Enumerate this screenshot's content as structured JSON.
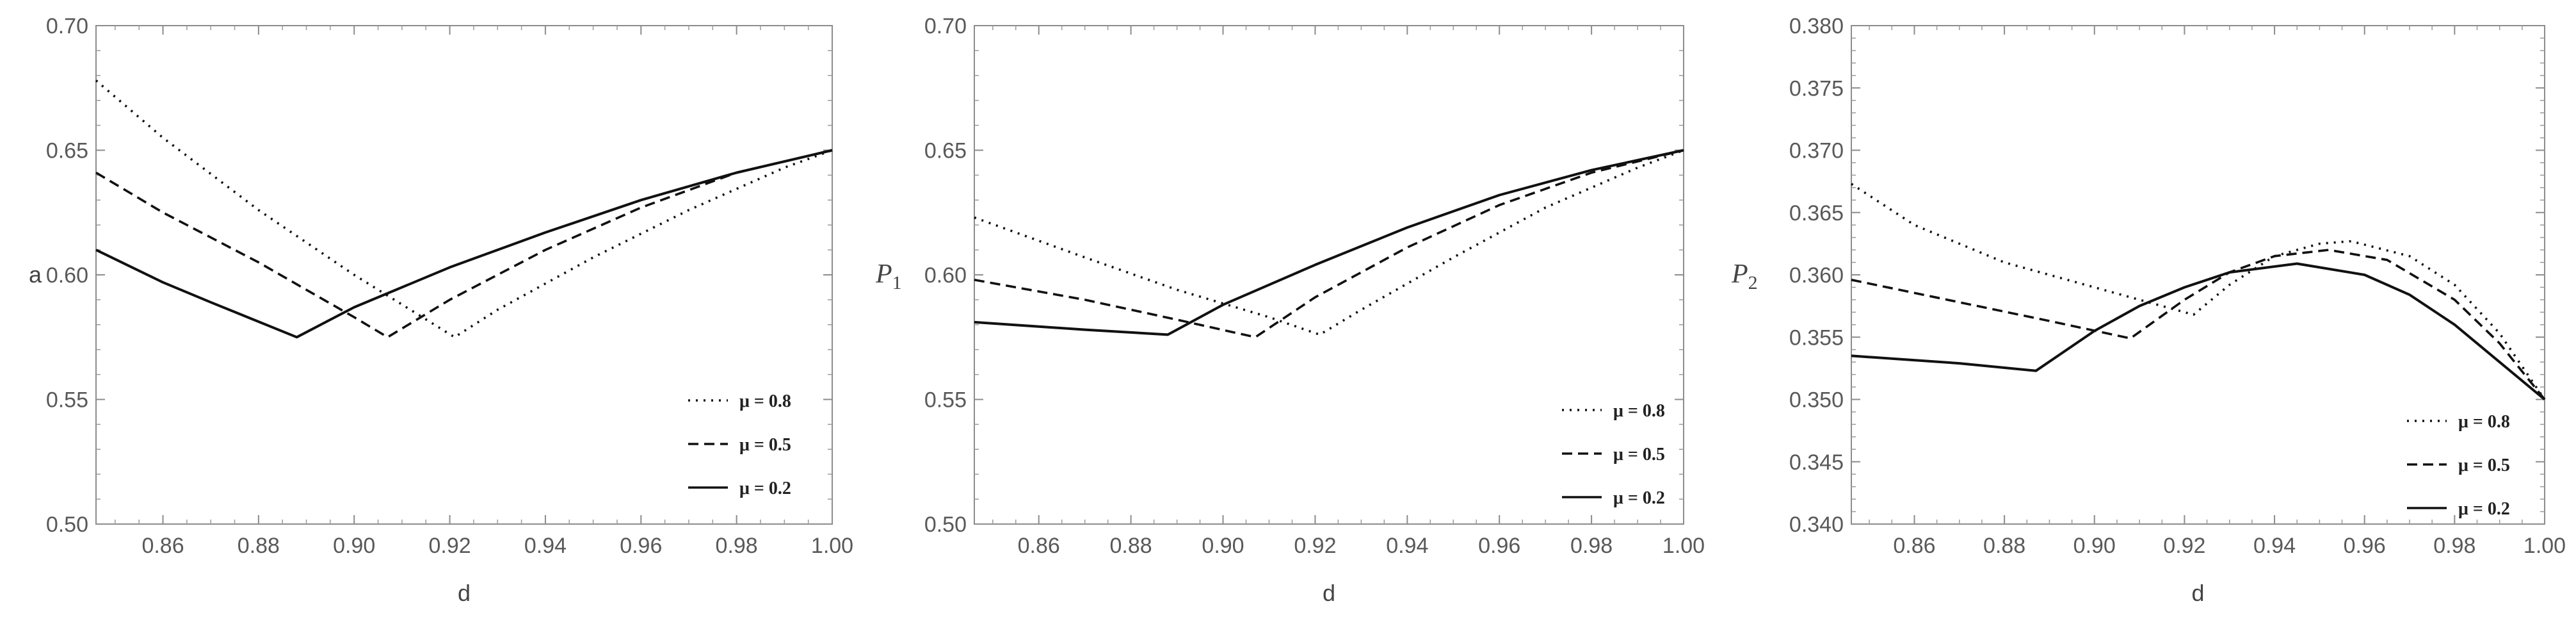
{
  "chart_data": [
    {
      "type": "line",
      "xlabel": "d",
      "ylabel": "a",
      "ylabel_sub": "",
      "xlim": [
        0.846,
        1.0
      ],
      "ylim": [
        0.5,
        0.7
      ],
      "xticks": [
        0.86,
        0.88,
        0.9,
        0.92,
        0.94,
        0.96,
        0.98,
        1.0
      ],
      "xtick_labels": [
        "0.86",
        "0.88",
        "0.90",
        "0.92",
        "0.94",
        "0.96",
        "0.98",
        "1.00"
      ],
      "yticks": [
        0.5,
        0.55,
        0.6,
        0.65,
        0.7
      ],
      "ytick_labels": [
        "0.50",
        "0.55",
        "0.60",
        "0.65",
        "0.70"
      ],
      "grid": false,
      "legend_position": "bottom-right",
      "series": [
        {
          "name": "μ = 0.8",
          "style": "dotted",
          "x": [
            0.846,
            0.86,
            0.88,
            0.9,
            0.921,
            0.93,
            0.95,
            0.97,
            0.99,
            1.0
          ],
          "y": [
            0.678,
            0.655,
            0.626,
            0.6,
            0.575,
            0.586,
            0.607,
            0.626,
            0.643,
            0.65
          ]
        },
        {
          "name": "μ = 0.5",
          "style": "dashed",
          "x": [
            0.846,
            0.86,
            0.88,
            0.9,
            0.907,
            0.92,
            0.94,
            0.96,
            0.98,
            1.0
          ],
          "y": [
            0.641,
            0.625,
            0.605,
            0.583,
            0.575,
            0.59,
            0.61,
            0.627,
            0.641,
            0.65
          ]
        },
        {
          "name": "μ = 0.2",
          "style": "solid",
          "x": [
            0.846,
            0.86,
            0.87,
            0.888,
            0.9,
            0.92,
            0.94,
            0.96,
            0.98,
            1.0
          ],
          "y": [
            0.61,
            0.597,
            0.589,
            0.575,
            0.587,
            0.603,
            0.617,
            0.63,
            0.641,
            0.65
          ]
        }
      ]
    },
    {
      "type": "line",
      "xlabel": "d",
      "ylabel": "P",
      "ylabel_sub": "1",
      "xlim": [
        0.846,
        1.0
      ],
      "ylim": [
        0.5,
        0.7
      ],
      "xticks": [
        0.86,
        0.88,
        0.9,
        0.92,
        0.94,
        0.96,
        0.98,
        1.0
      ],
      "xtick_labels": [
        "0.86",
        "0.88",
        "0.90",
        "0.92",
        "0.94",
        "0.96",
        "0.98",
        "1.00"
      ],
      "yticks": [
        0.5,
        0.55,
        0.6,
        0.65,
        0.7
      ],
      "ytick_labels": [
        "0.50",
        "0.55",
        "0.60",
        "0.65",
        "0.70"
      ],
      "grid": false,
      "legend_position": "bottom-right",
      "series": [
        {
          "name": "μ = 0.8",
          "style": "dotted",
          "x": [
            0.846,
            0.87,
            0.89,
            0.91,
            0.921,
            0.93,
            0.95,
            0.97,
            0.99,
            1.0
          ],
          "y": [
            0.623,
            0.607,
            0.594,
            0.583,
            0.576,
            0.586,
            0.607,
            0.627,
            0.643,
            0.65
          ]
        },
        {
          "name": "μ = 0.5",
          "style": "dashed",
          "x": [
            0.846,
            0.87,
            0.89,
            0.907,
            0.92,
            0.94,
            0.96,
            0.98,
            1.0
          ],
          "y": [
            0.598,
            0.59,
            0.582,
            0.575,
            0.591,
            0.611,
            0.628,
            0.641,
            0.65
          ]
        },
        {
          "name": "μ = 0.2",
          "style": "solid",
          "x": [
            0.846,
            0.87,
            0.888,
            0.9,
            0.92,
            0.94,
            0.96,
            0.98,
            1.0
          ],
          "y": [
            0.581,
            0.578,
            0.576,
            0.588,
            0.604,
            0.619,
            0.632,
            0.642,
            0.65
          ]
        }
      ]
    },
    {
      "type": "line",
      "xlabel": "d",
      "ylabel": "P",
      "ylabel_sub": "2",
      "xlim": [
        0.846,
        1.0
      ],
      "ylim": [
        0.34,
        0.38
      ],
      "xticks": [
        0.86,
        0.88,
        0.9,
        0.92,
        0.94,
        0.96,
        0.98,
        1.0
      ],
      "xtick_labels": [
        "0.86",
        "0.88",
        "0.90",
        "0.92",
        "0.94",
        "0.96",
        "0.98",
        "1.00"
      ],
      "yticks": [
        0.34,
        0.345,
        0.35,
        0.355,
        0.36,
        0.365,
        0.37,
        0.375,
        0.38
      ],
      "ytick_labels": [
        "0.340",
        "0.345",
        "0.350",
        "0.355",
        "0.360",
        "0.365",
        "0.370",
        "0.375",
        "0.380"
      ],
      "grid": false,
      "legend_position": "bottom-right",
      "series": [
        {
          "name": "μ = 0.8",
          "style": "dotted",
          "x": [
            0.846,
            0.86,
            0.88,
            0.9,
            0.922,
            0.93,
            0.94,
            0.95,
            0.957,
            0.97,
            0.98,
            0.99,
            1.0
          ],
          "y": [
            0.3673,
            0.364,
            0.361,
            0.359,
            0.3568,
            0.3592,
            0.3615,
            0.3625,
            0.3627,
            0.3615,
            0.3592,
            0.3553,
            0.35
          ]
        },
        {
          "name": "μ = 0.5",
          "style": "dashed",
          "x": [
            0.846,
            0.87,
            0.89,
            0.908,
            0.92,
            0.93,
            0.94,
            0.952,
            0.965,
            0.98,
            0.99,
            1.0
          ],
          "y": [
            0.3596,
            0.3578,
            0.3563,
            0.3549,
            0.358,
            0.3602,
            0.3615,
            0.362,
            0.3612,
            0.358,
            0.3545,
            0.35
          ]
        },
        {
          "name": "μ = 0.2",
          "style": "solid",
          "x": [
            0.846,
            0.87,
            0.887,
            0.9,
            0.91,
            0.92,
            0.93,
            0.945,
            0.96,
            0.97,
            0.98,
            0.99,
            1.0
          ],
          "y": [
            0.3535,
            0.3529,
            0.3523,
            0.3555,
            0.3575,
            0.359,
            0.3602,
            0.3609,
            0.36,
            0.3584,
            0.356,
            0.353,
            0.35
          ]
        }
      ]
    }
  ]
}
